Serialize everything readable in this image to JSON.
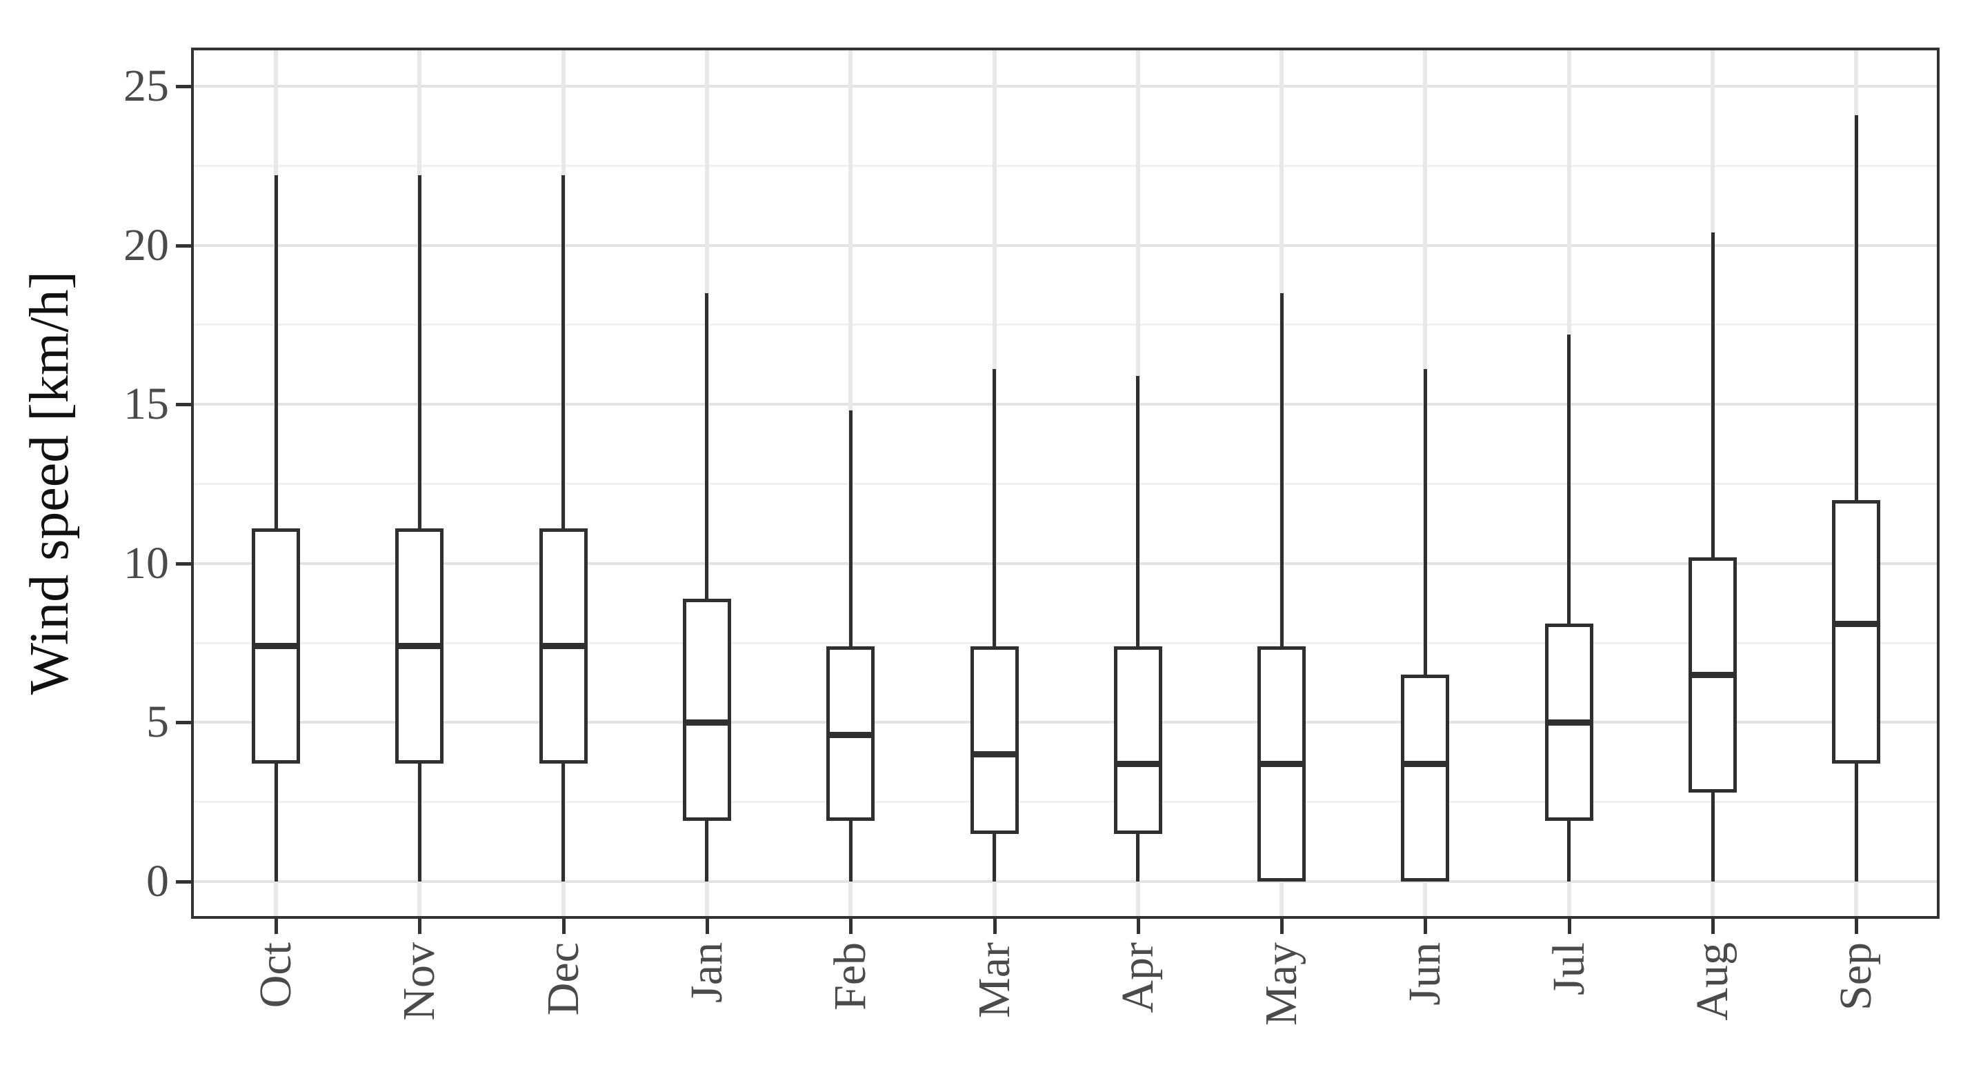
{
  "chart_data": {
    "type": "box",
    "title": "",
    "xlabel": "",
    "ylabel": "Wind speed [km/h]",
    "categories": [
      "Oct",
      "Nov",
      "Dec",
      "Jan",
      "Feb",
      "Mar",
      "Apr",
      "May",
      "Jun",
      "Jul",
      "Aug",
      "Sep"
    ],
    "yticks": [
      0,
      5,
      10,
      15,
      20,
      25
    ],
    "ylim": [
      -1.2,
      26.2
    ],
    "grid": {
      "major_horizontal": true,
      "minor_horizontal": true,
      "vertical_at_categories": true,
      "minor_step": 2.5
    },
    "legend_position": "none",
    "series": [
      {
        "name": "Wind speed",
        "boxes": [
          {
            "category": "Oct",
            "min": 0,
            "q1": 3.7,
            "median": 7.4,
            "q3": 11.1,
            "max": 22.2
          },
          {
            "category": "Nov",
            "min": 0,
            "q1": 3.7,
            "median": 7.4,
            "q3": 11.1,
            "max": 22.2
          },
          {
            "category": "Dec",
            "min": 0,
            "q1": 3.7,
            "median": 7.4,
            "q3": 11.1,
            "max": 22.2
          },
          {
            "category": "Jan",
            "min": 0,
            "q1": 1.9,
            "median": 5.0,
            "q3": 8.9,
            "max": 18.5
          },
          {
            "category": "Feb",
            "min": 0,
            "q1": 1.9,
            "median": 4.6,
            "q3": 7.4,
            "max": 14.8
          },
          {
            "category": "Mar",
            "min": 0,
            "q1": 1.5,
            "median": 4.0,
            "q3": 7.4,
            "max": 16.1
          },
          {
            "category": "Apr",
            "min": 0,
            "q1": 1.5,
            "median": 3.7,
            "q3": 7.4,
            "max": 15.9
          },
          {
            "category": "May",
            "min": 0,
            "q1": 0,
            "median": 3.7,
            "q3": 7.4,
            "max": 18.5
          },
          {
            "category": "Jun",
            "min": 0,
            "q1": 0,
            "median": 3.7,
            "q3": 6.5,
            "max": 16.1
          },
          {
            "category": "Jul",
            "min": 0,
            "q1": 1.9,
            "median": 5.0,
            "q3": 8.1,
            "max": 17.2
          },
          {
            "category": "Aug",
            "min": 0,
            "q1": 2.8,
            "median": 6.5,
            "q3": 10.2,
            "max": 20.4
          },
          {
            "category": "Sep",
            "min": 0,
            "q1": 3.7,
            "median": 8.1,
            "q3": 12.0,
            "max": 24.1
          }
        ]
      }
    ],
    "colors": {
      "box_stroke": "#2f2f2f",
      "box_fill": "#ffffff",
      "median": "#2f2f2f",
      "whisker": "#2f2f2f",
      "grid_major": "#e3e3e3",
      "grid_minor": "#f0f0f0",
      "grid_vertical": "#e8e8e8",
      "panel_border": "#333333",
      "tick_mark": "#333333",
      "axis_text": "#4a4a4a",
      "axis_title": "#111111",
      "background": "#ffffff"
    }
  }
}
